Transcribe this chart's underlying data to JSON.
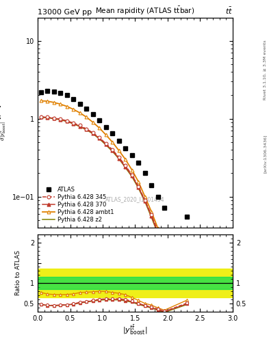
{
  "title_top": "13000 GeV pp",
  "title_top_right": "tt",
  "plot_title": "Mean rapidity (ATLAS ttbar)",
  "right_label_top": "Rivet 3.1.10, ≥ 3.3M events",
  "right_label_bot": "[arXiv:1306.3436]",
  "watermark": "ATLAS_2020_I1801434",
  "atlas_x": [
    0.05,
    0.15,
    0.25,
    0.35,
    0.45,
    0.55,
    0.65,
    0.75,
    0.85,
    0.95,
    1.05,
    1.15,
    1.25,
    1.35,
    1.45,
    1.55,
    1.65,
    1.75,
    1.85,
    1.95,
    2.3
  ],
  "atlas_y": [
    2.2,
    2.3,
    2.25,
    2.15,
    2.0,
    1.8,
    1.55,
    1.35,
    1.15,
    0.95,
    0.78,
    0.65,
    0.52,
    0.42,
    0.34,
    0.27,
    0.2,
    0.14,
    0.1,
    0.072,
    0.055
  ],
  "py345_x": [
    0.05,
    0.15,
    0.25,
    0.35,
    0.45,
    0.55,
    0.65,
    0.75,
    0.85,
    0.95,
    1.05,
    1.15,
    1.25,
    1.35,
    1.45,
    1.55,
    1.65,
    1.75,
    1.85,
    1.95,
    2.3
  ],
  "py345_y": [
    1.05,
    1.05,
    1.02,
    0.99,
    0.94,
    0.88,
    0.82,
    0.74,
    0.66,
    0.57,
    0.48,
    0.4,
    0.32,
    0.25,
    0.19,
    0.135,
    0.09,
    0.058,
    0.036,
    0.022,
    0.028
  ],
  "py370_x": [
    0.05,
    0.15,
    0.25,
    0.35,
    0.45,
    0.55,
    0.65,
    0.75,
    0.85,
    0.95,
    1.05,
    1.15,
    1.25,
    1.35,
    1.45,
    1.55,
    1.65,
    1.75,
    1.85,
    1.95,
    2.3
  ],
  "py370_y": [
    1.05,
    1.04,
    1.01,
    0.98,
    0.93,
    0.87,
    0.8,
    0.73,
    0.65,
    0.56,
    0.47,
    0.39,
    0.31,
    0.24,
    0.185,
    0.132,
    0.088,
    0.056,
    0.034,
    0.021,
    0.027
  ],
  "pyambt1_x": [
    0.05,
    0.15,
    0.25,
    0.35,
    0.45,
    0.55,
    0.65,
    0.75,
    0.85,
    0.95,
    1.05,
    1.15,
    1.25,
    1.35,
    1.45,
    1.55,
    1.65,
    1.75,
    1.85,
    1.95,
    2.3
  ],
  "pyambt1_y": [
    1.7,
    1.68,
    1.62,
    1.54,
    1.44,
    1.32,
    1.19,
    1.05,
    0.9,
    0.76,
    0.62,
    0.5,
    0.39,
    0.3,
    0.22,
    0.155,
    0.1,
    0.064,
    0.039,
    0.024,
    0.032
  ],
  "pyz2_x": [
    0.05,
    0.15,
    0.25,
    0.35,
    0.45,
    0.55,
    0.65,
    0.75,
    0.85,
    0.95,
    1.05,
    1.15,
    1.25,
    1.35,
    1.45,
    1.55,
    1.65,
    1.75,
    1.85,
    1.95,
    2.3
  ],
  "pyz2_y": [
    1.04,
    1.03,
    1.0,
    0.97,
    0.92,
    0.86,
    0.79,
    0.72,
    0.64,
    0.55,
    0.46,
    0.38,
    0.305,
    0.235,
    0.18,
    0.128,
    0.086,
    0.054,
    0.033,
    0.02,
    0.026
  ],
  "ratio_x": [
    0.05,
    0.15,
    0.25,
    0.35,
    0.45,
    0.55,
    0.65,
    0.75,
    0.85,
    0.95,
    1.05,
    1.15,
    1.25,
    1.35,
    1.45,
    1.55,
    1.65,
    1.75,
    1.85,
    1.95,
    2.3
  ],
  "ratio_py345_y": [
    0.477,
    0.456,
    0.453,
    0.46,
    0.47,
    0.489,
    0.529,
    0.548,
    0.574,
    0.6,
    0.615,
    0.615,
    0.615,
    0.595,
    0.559,
    0.5,
    0.45,
    0.414,
    0.36,
    0.305,
    0.509
  ],
  "ratio_py370_y": [
    0.477,
    0.452,
    0.449,
    0.456,
    0.465,
    0.483,
    0.516,
    0.541,
    0.565,
    0.589,
    0.603,
    0.6,
    0.597,
    0.571,
    0.544,
    0.489,
    0.44,
    0.4,
    0.34,
    0.292,
    0.491
  ],
  "ratio_pyambt1_y": [
    0.773,
    0.73,
    0.72,
    0.716,
    0.72,
    0.733,
    0.768,
    0.778,
    0.783,
    0.8,
    0.795,
    0.769,
    0.75,
    0.714,
    0.647,
    0.574,
    0.5,
    0.457,
    0.39,
    0.333,
    0.582
  ],
  "ratio_pyz2_y": [
    0.473,
    0.448,
    0.444,
    0.451,
    0.46,
    0.478,
    0.51,
    0.533,
    0.557,
    0.579,
    0.59,
    0.585,
    0.587,
    0.56,
    0.529,
    0.474,
    0.43,
    0.386,
    0.33,
    0.278,
    0.473
  ],
  "green_band_lo": 0.85,
  "green_band_hi": 1.15,
  "yellow_band_lo": 0.65,
  "yellow_band_hi": 1.35,
  "color_345": "#c0392b",
  "color_370": "#c0392b",
  "color_ambt1": "#e08000",
  "color_z2": "#808000",
  "ylim_main": [
    0.04,
    20
  ],
  "ylim_ratio": [
    0.3,
    2.2
  ],
  "xlim": [
    0.0,
    3.0
  ]
}
